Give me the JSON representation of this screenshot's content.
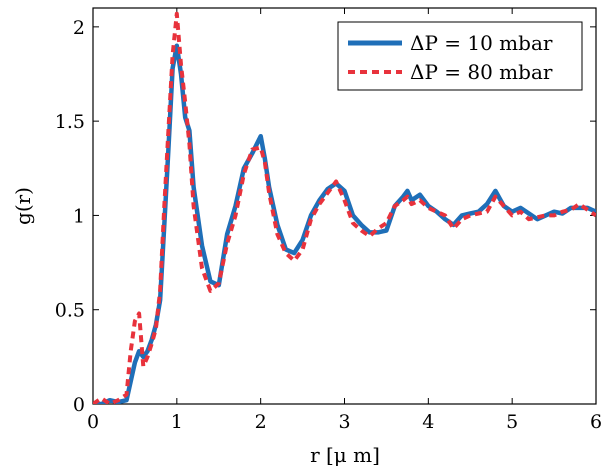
{
  "chart_data": {
    "type": "line",
    "xlabel": "r [μ m]",
    "ylabel": "g(r)",
    "xlim": [
      0,
      6
    ],
    "ylim": [
      0,
      2.1
    ],
    "xticks": [
      "0",
      "1",
      "2",
      "3",
      "4",
      "5",
      "6"
    ],
    "yticks": [
      "0",
      "0.5",
      "1",
      "1.5",
      "2"
    ],
    "grid": false,
    "legend_position": "top-right",
    "series": [
      {
        "name": "ΔP = 10 mbar",
        "color": "#1f6fb8",
        "style": "solid",
        "x": [
          0.0,
          0.1,
          0.2,
          0.3,
          0.4,
          0.45,
          0.5,
          0.55,
          0.6,
          0.65,
          0.7,
          0.75,
          0.8,
          0.85,
          0.9,
          0.95,
          1.0,
          1.05,
          1.1,
          1.15,
          1.2,
          1.3,
          1.4,
          1.5,
          1.6,
          1.7,
          1.8,
          1.9,
          2.0,
          2.05,
          2.1,
          2.2,
          2.3,
          2.4,
          2.5,
          2.6,
          2.7,
          2.8,
          2.9,
          3.0,
          3.1,
          3.2,
          3.3,
          3.4,
          3.5,
          3.6,
          3.7,
          3.75,
          3.8,
          3.9,
          4.0,
          4.1,
          4.2,
          4.3,
          4.4,
          4.5,
          4.6,
          4.7,
          4.8,
          4.9,
          5.0,
          5.1,
          5.2,
          5.3,
          5.4,
          5.5,
          5.6,
          5.7,
          5.8,
          5.9,
          6.0
        ],
        "values": [
          0.0,
          0.0,
          0.02,
          0.01,
          0.02,
          0.12,
          0.22,
          0.28,
          0.25,
          0.28,
          0.34,
          0.42,
          0.55,
          0.95,
          1.35,
          1.78,
          1.9,
          1.75,
          1.52,
          1.45,
          1.15,
          0.84,
          0.65,
          0.63,
          0.9,
          1.05,
          1.25,
          1.33,
          1.42,
          1.3,
          1.15,
          0.95,
          0.82,
          0.8,
          0.87,
          1.0,
          1.08,
          1.14,
          1.17,
          1.13,
          1.0,
          0.95,
          0.91,
          0.91,
          0.92,
          1.05,
          1.1,
          1.13,
          1.08,
          1.11,
          1.05,
          1.02,
          0.98,
          0.95,
          1.0,
          1.01,
          1.02,
          1.06,
          1.13,
          1.05,
          1.02,
          1.04,
          1.01,
          0.98,
          1.0,
          1.02,
          1.01,
          1.04,
          1.04,
          1.04,
          1.02
        ]
      },
      {
        "name": "ΔP = 80 mbar",
        "color": "#e8323c",
        "style": "dashed",
        "x": [
          0.0,
          0.1,
          0.2,
          0.3,
          0.4,
          0.45,
          0.5,
          0.55,
          0.6,
          0.65,
          0.7,
          0.75,
          0.8,
          0.85,
          0.9,
          0.95,
          1.0,
          1.05,
          1.1,
          1.15,
          1.2,
          1.3,
          1.4,
          1.5,
          1.6,
          1.7,
          1.8,
          1.9,
          2.0,
          2.05,
          2.1,
          2.2,
          2.3,
          2.4,
          2.5,
          2.6,
          2.7,
          2.8,
          2.9,
          3.0,
          3.1,
          3.2,
          3.3,
          3.4,
          3.5,
          3.6,
          3.7,
          3.75,
          3.8,
          3.9,
          4.0,
          4.1,
          4.2,
          4.3,
          4.4,
          4.5,
          4.6,
          4.7,
          4.8,
          4.9,
          5.0,
          5.1,
          5.2,
          5.3,
          5.4,
          5.5,
          5.6,
          5.7,
          5.8,
          5.9,
          6.0
        ],
        "values": [
          0.0,
          0.03,
          0.0,
          0.02,
          0.05,
          0.28,
          0.44,
          0.48,
          0.2,
          0.25,
          0.32,
          0.4,
          0.6,
          1.05,
          1.45,
          1.85,
          2.07,
          1.8,
          1.6,
          1.38,
          1.05,
          0.72,
          0.6,
          0.64,
          0.85,
          1.0,
          1.22,
          1.35,
          1.36,
          1.28,
          1.12,
          0.9,
          0.8,
          0.76,
          0.82,
          0.98,
          1.06,
          1.12,
          1.18,
          1.08,
          0.96,
          0.92,
          0.89,
          0.93,
          0.96,
          1.05,
          1.08,
          1.1,
          1.06,
          1.08,
          1.04,
          1.02,
          1.0,
          0.93,
          0.98,
          1.0,
          1.01,
          1.02,
          1.1,
          1.05,
          1.0,
          1.02,
          0.98,
          0.99,
          1.0,
          1.0,
          1.02,
          1.03,
          1.06,
          1.03,
          1.0
        ]
      }
    ]
  }
}
